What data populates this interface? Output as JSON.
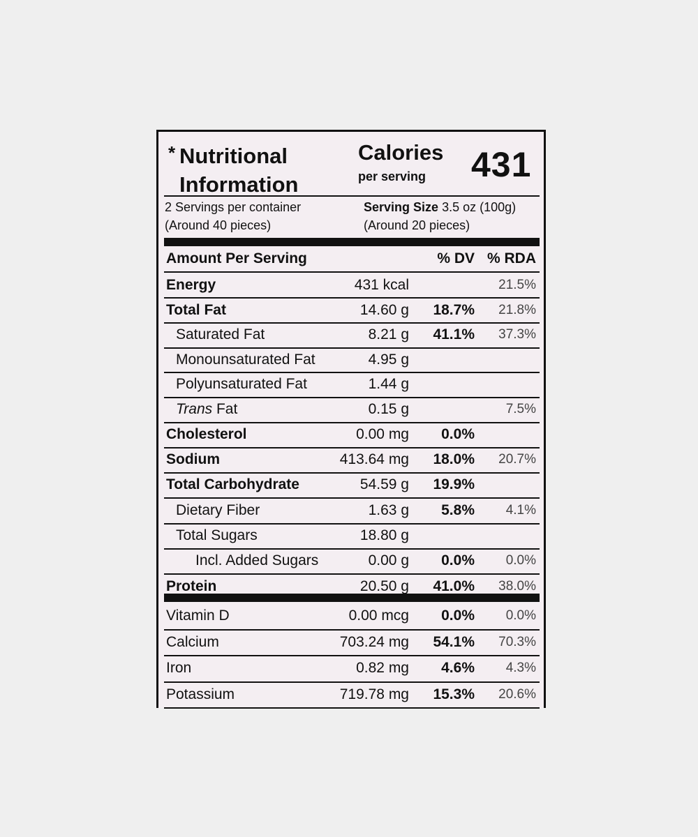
{
  "header": {
    "title_mark": "*",
    "title": "Nutritional Information",
    "calories_label": "Calories",
    "calories_sub": "per serving",
    "calories_value": "431"
  },
  "servings": {
    "per_container": "2 Servings per container",
    "per_container_note": "(Around 40 pieces)",
    "size_label": "Serving Size",
    "size_value": "3.5 oz (100g)",
    "size_note": "(Around 20 pieces)"
  },
  "table": {
    "columns": [
      "Amount Per Serving",
      "% DV",
      "% RDA"
    ],
    "rows": [
      {
        "name": "Energy",
        "amount": "431 kcal",
        "rda": "21.5%"
      },
      {
        "name": "Total Fat",
        "amount": "14.60 g",
        "dv": "18.7%",
        "rda": "21.8%"
      },
      {
        "name": "Saturated Fat",
        "amount": "8.21 g",
        "dv": "41.1%",
        "rda": "37.3%"
      },
      {
        "name": "Monounsaturated Fat",
        "amount": "4.95 g"
      },
      {
        "name": "Polyunsaturated Fat",
        "amount": "1.44 g"
      },
      {
        "name_italic": "Trans",
        "name": "Fat",
        "amount": "0.15 g",
        "rda": "7.5%"
      },
      {
        "name": "Cholesterol",
        "amount": "0.00 mg",
        "dv": "0.0%"
      },
      {
        "name": "Sodium",
        "amount": "413.64 mg",
        "dv": "18.0%",
        "rda": "20.7%"
      },
      {
        "name": "Total Carbohydrate",
        "amount": "54.59 g",
        "dv": "19.9%"
      },
      {
        "name": "Dietary Fiber",
        "amount": "1.63 g",
        "dv": "5.8%",
        "rda": "4.1%"
      },
      {
        "name": "Total Sugars",
        "amount": "18.80 g"
      },
      {
        "name": "Incl. Added Sugars",
        "amount": "0.00 g",
        "dv": "0.0%",
        "rda": "0.0%"
      },
      {
        "name": "Protein",
        "amount": "20.50 g",
        "dv": "41.0%",
        "rda": "38.0%"
      },
      {
        "name": "Vitamin D",
        "amount": "0.00 mcg",
        "dv": "0.0%",
        "rda": "0.0%"
      },
      {
        "name": "Calcium",
        "amount": "703.24 mg",
        "dv": "54.1%",
        "rda": "70.3%"
      },
      {
        "name": "Iron",
        "amount": "0.82 mg",
        "dv": "4.6%",
        "rda": "4.3%"
      },
      {
        "name": "Potassium",
        "amount": "719.78 mg",
        "dv": "15.3%",
        "rda": "20.6%"
      }
    ]
  }
}
